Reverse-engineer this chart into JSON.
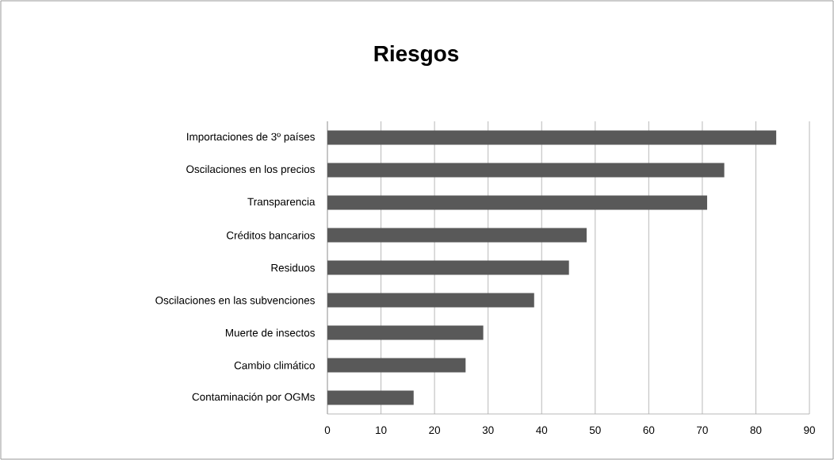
{
  "chart_data": {
    "type": "bar",
    "orientation": "horizontal",
    "title": "Riesgos",
    "categories": [
      "Importaciones de 3º países",
      "Oscilaciones en los precios",
      "Transparencia",
      "Créditos bancarios",
      "Residuos",
      "Oscilaciones en las subvenciones",
      "Muerte de insectos",
      "Cambio climático",
      "Contaminación por OGMs"
    ],
    "values": [
      83.8,
      74.1,
      70.9,
      48.4,
      45.1,
      38.6,
      29.1,
      25.8,
      16.1
    ],
    "color": "#595959",
    "xlim": [
      0,
      90
    ],
    "xticks": [
      0,
      10,
      20,
      30,
      40,
      50,
      60,
      70,
      80,
      90
    ],
    "grid": "x"
  }
}
